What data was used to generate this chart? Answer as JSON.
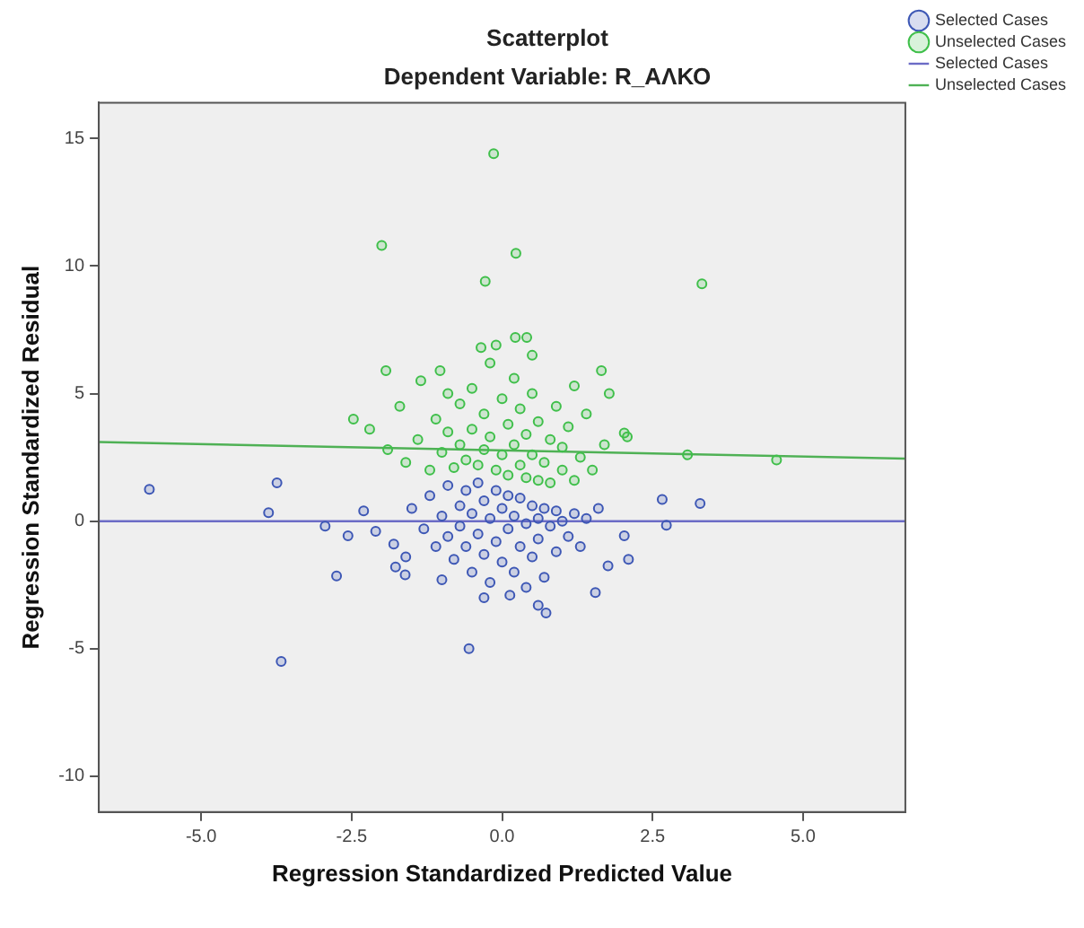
{
  "chart_data": {
    "type": "scatter",
    "title": "Scatterplot",
    "subtitle": "Dependent Variable: R_ΑΛΚΟ",
    "xlabel": "Regression Standardized Predicted Value",
    "ylabel": "Regression Standardized Residual",
    "xlim": [
      -6.7,
      6.7
    ],
    "ylim": [
      -11.4,
      16.4
    ],
    "xticks": [
      {
        "value": -5,
        "label": "-5.0"
      },
      {
        "value": -2.5,
        "label": "-2.5"
      },
      {
        "value": 0,
        "label": "0.0"
      },
      {
        "value": 2.5,
        "label": "2.5"
      },
      {
        "value": 5,
        "label": "5.0"
      }
    ],
    "yticks": [
      -10,
      -5,
      0,
      5,
      10,
      15
    ],
    "grid": false,
    "legend": "top right",
    "marker": "circle",
    "series": [
      {
        "name": "Selected Cases",
        "type": "scatter",
        "color": "#3d57b5",
        "x": [
          -1.5,
          -1.3,
          -1.2,
          -1.1,
          -1.0,
          -0.9,
          -0.9,
          -0.8,
          -0.7,
          -0.7,
          -0.6,
          -0.6,
          -0.5,
          -0.5,
          -0.4,
          -0.4,
          -0.3,
          -0.3,
          -0.2,
          -0.2,
          -0.1,
          -0.1,
          0.0,
          0.0,
          0.1,
          0.1,
          0.2,
          0.2,
          0.3,
          0.3,
          0.4,
          0.4,
          0.5,
          0.5,
          0.6,
          0.6,
          0.7,
          0.7,
          0.8,
          0.9,
          0.9,
          1.0,
          1.1,
          1.2,
          1.3,
          1.4,
          -1.8,
          -2.1,
          -1.6,
          -0.3,
          0.6,
          -1.0,
          1.6,
          -2.3,
          -5.86,
          -3.74,
          -3.88,
          -2.75,
          -3.67,
          -0.55,
          -1.77,
          -1.61,
          0.73,
          0.13,
          1.55,
          -2.56,
          -2.94,
          3.29,
          2.66,
          2.73,
          2.1,
          1.76,
          2.03
        ],
        "values": [
          0.5,
          -0.3,
          1.0,
          -1.0,
          0.2,
          1.4,
          -0.6,
          -1.5,
          0.6,
          -0.2,
          1.2,
          -1.0,
          0.3,
          -2.0,
          1.5,
          -0.5,
          0.8,
          -1.3,
          0.1,
          -2.4,
          1.2,
          -0.8,
          0.5,
          -1.6,
          1.0,
          -0.3,
          0.2,
          -2.0,
          0.9,
          -1.0,
          -0.1,
          -2.6,
          0.6,
          -1.4,
          0.1,
          -0.7,
          0.5,
          -2.2,
          -0.2,
          0.4,
          -1.2,
          0.0,
          -0.6,
          0.3,
          -1.0,
          0.1,
          -0.9,
          -0.4,
          -1.4,
          -3.0,
          -3.3,
          -2.3,
          0.5,
          0.4,
          1.25,
          1.5,
          0.33,
          -2.15,
          -5.5,
          -5.0,
          -1.8,
          -2.1,
          -3.6,
          -2.9,
          -2.8,
          -0.57,
          -0.2,
          0.69,
          0.85,
          -0.16,
          -1.5,
          -1.75,
          -0.57
        ]
      },
      {
        "name": "Unselected Cases",
        "type": "scatter",
        "color": "#3fbf4a",
        "x": [
          -1.6,
          -1.4,
          -1.2,
          -1.1,
          -1.0,
          -0.9,
          -0.8,
          -0.7,
          -0.7,
          -0.6,
          -0.5,
          -0.5,
          -0.4,
          -0.3,
          -0.3,
          -0.2,
          -0.2,
          -0.1,
          0.0,
          0.0,
          0.1,
          0.1,
          0.2,
          0.2,
          0.3,
          0.3,
          0.4,
          0.4,
          0.5,
          0.5,
          0.6,
          0.6,
          0.7,
          0.8,
          0.8,
          0.9,
          1.0,
          1.0,
          1.1,
          1.2,
          1.3,
          1.4,
          1.5,
          -1.9,
          -2.2,
          -1.7,
          0.5,
          -0.1,
          1.2,
          1.7,
          -0.9,
          -0.14,
          -2.0,
          0.23,
          -0.28,
          0.22,
          0.41,
          -1.93,
          -2.47,
          -1.35,
          -1.03,
          -0.35,
          3.32,
          1.65,
          1.78,
          2.03,
          4.56,
          3.08,
          2.08
        ],
        "values": [
          2.3,
          3.2,
          2.0,
          4.0,
          2.7,
          3.5,
          2.1,
          4.6,
          3.0,
          2.4,
          5.2,
          3.6,
          2.2,
          4.2,
          2.8,
          6.2,
          3.3,
          2.0,
          4.8,
          2.6,
          3.8,
          1.8,
          5.6,
          3.0,
          2.2,
          4.4,
          1.7,
          3.4,
          2.6,
          5.0,
          1.6,
          3.9,
          2.3,
          3.2,
          1.5,
          4.5,
          2.0,
          2.9,
          3.7,
          1.6,
          2.5,
          4.2,
          2.0,
          2.8,
          3.6,
          4.5,
          6.5,
          6.9,
          5.3,
          3.0,
          5.0,
          14.4,
          10.8,
          10.5,
          9.4,
          7.2,
          7.2,
          5.9,
          4.0,
          5.5,
          5.9,
          6.8,
          9.3,
          5.9,
          5.0,
          3.45,
          2.4,
          2.6,
          3.3
        ]
      },
      {
        "name": "Selected Cases",
        "type": "line",
        "marker": "none",
        "color": "#6c6cc6",
        "x": [
          -6.7,
          6.7
        ],
        "values": [
          0,
          0
        ]
      },
      {
        "name": "Unselected Cases",
        "type": "line",
        "marker": "none",
        "color": "#4fb155",
        "x": [
          -6.7,
          6.7
        ],
        "values": [
          3.1,
          2.45
        ]
      }
    ]
  }
}
